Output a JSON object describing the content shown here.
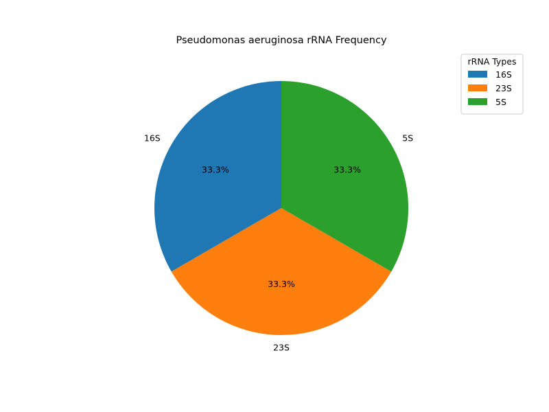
{
  "chart_data": {
    "type": "pie",
    "title": "Pseudomonas aeruginosa rRNA Frequency",
    "categories": [
      "16S",
      "23S",
      "5S"
    ],
    "values": [
      1,
      1,
      1
    ],
    "percent_labels": [
      "33.3%",
      "33.3%",
      "33.3%"
    ],
    "colors": [
      "#1f77b4",
      "#ff7f0e",
      "#2ca02c"
    ],
    "start_angle_deg": 90,
    "direction": "counterclockwise",
    "legend": {
      "title": "rRNA Types",
      "placement": "top-right",
      "entries": [
        "16S",
        "23S",
        "5S"
      ]
    }
  }
}
